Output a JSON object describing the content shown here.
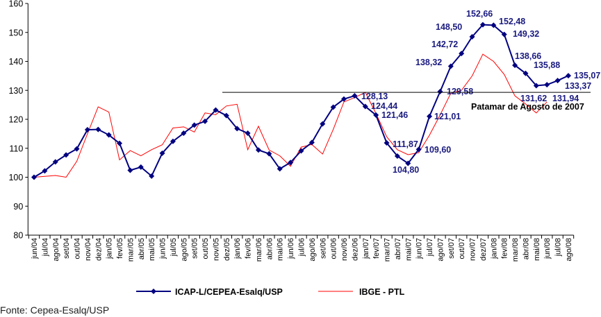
{
  "chart_data": {
    "type": "line",
    "title": "",
    "xlabel": "",
    "ylabel": "",
    "ylim": [
      80,
      160
    ],
    "yticks": [
      80,
      90,
      100,
      110,
      120,
      130,
      140,
      150,
      160
    ],
    "grid": false,
    "legend_position": "bottom",
    "categories": [
      "jun/04",
      "jul/04",
      "ago/04",
      "set/04",
      "out/04",
      "nov/04",
      "dez/04",
      "jan/05",
      "fev/05",
      "mar/05",
      "abr/05",
      "mai/05",
      "jun/05",
      "jul/05",
      "ago/05",
      "set/05",
      "out/05",
      "nov/05",
      "dez/05",
      "jan/06",
      "fev/06",
      "mar/06",
      "abr/06",
      "mai/06",
      "jun/06",
      "jul/06",
      "ago/06",
      "set/06",
      "out/06",
      "nov/06",
      "dez/06",
      "jan/07",
      "fev/07",
      "mar/07",
      "abr/07",
      "mai/07",
      "jun/07",
      "jul/07",
      "ago/07",
      "set/07",
      "out/07",
      "nov/07",
      "dez/07",
      "jan/08",
      "fev/08",
      "mar/08",
      "abr/08",
      "mai/08",
      "jun/08",
      "jul/08",
      "ago/08"
    ],
    "series": [
      {
        "name": "ICAP-L/CEPEA-Esalq/USP",
        "color": "#000080",
        "marker": "diamond",
        "values": [
          100,
          102.2,
          105.3,
          107.7,
          109.8,
          116.4,
          116.5,
          114.6,
          111.7,
          102.4,
          103.5,
          100.4,
          108.3,
          112.4,
          115.2,
          118.0,
          119.3,
          123.2,
          121.3,
          116.8,
          115.2,
          109.4,
          108.1,
          102.9,
          105.1,
          109.1,
          112.0,
          118.4,
          124.2,
          127.0,
          128.13,
          124.44,
          121.46,
          111.87,
          107.3,
          104.8,
          109.6,
          121.01,
          129.58,
          138.32,
          142.72,
          148.5,
          152.66,
          152.48,
          149.32,
          138.66,
          135.88,
          131.62,
          131.94,
          133.37,
          135.07
        ]
      },
      {
        "name": "IBGE - PTL",
        "color": "#ff0000",
        "marker": "none",
        "values": [
          100,
          100.3,
          100.6,
          100,
          105.5,
          115,
          124.3,
          122.5,
          106,
          109.2,
          107.4,
          109.5,
          111.2,
          117,
          117.4,
          115.6,
          122.2,
          121.6,
          124.6,
          125.2,
          109.5,
          117.6,
          109.4,
          107.4,
          103.8,
          110.4,
          111.3,
          108,
          116.5,
          126,
          127.5,
          129.3,
          122,
          114,
          109.5,
          107.8,
          108.5,
          114.5,
          121.5,
          129,
          130,
          135,
          142.5,
          140,
          135.5,
          128.1,
          125.3,
          122.2,
          126,
          null,
          null
        ]
      }
    ],
    "data_labels": [
      {
        "index": 30,
        "text": "128,13"
      },
      {
        "index": 31,
        "text": "124,44"
      },
      {
        "index": 32,
        "text": "121,46"
      },
      {
        "index": 33,
        "text": "111,87"
      },
      {
        "index": 35,
        "text": "104,80"
      },
      {
        "index": 36,
        "text": "109,60"
      },
      {
        "index": 37,
        "text": "121,01"
      },
      {
        "index": 38,
        "text": "129,58"
      },
      {
        "index": 39,
        "text": "138,32"
      },
      {
        "index": 40,
        "text": "142,72"
      },
      {
        "index": 41,
        "text": "148,50"
      },
      {
        "index": 42,
        "text": "152,66"
      },
      {
        "index": 43,
        "text": "152,48"
      },
      {
        "index": 44,
        "text": "149,32"
      },
      {
        "index": 45,
        "text": "138,66"
      },
      {
        "index": 46,
        "text": "135,88"
      },
      {
        "index": 47,
        "text": "131,62"
      },
      {
        "index": 48,
        "text": "131,94"
      },
      {
        "index": 49,
        "text": "133,37"
      },
      {
        "index": 50,
        "text": "135,07"
      }
    ],
    "reference_line": {
      "value": 129.3,
      "label": "Patamar de Agosto de 2007"
    }
  },
  "source": "Fonte: Cepea-Esalq/USP"
}
